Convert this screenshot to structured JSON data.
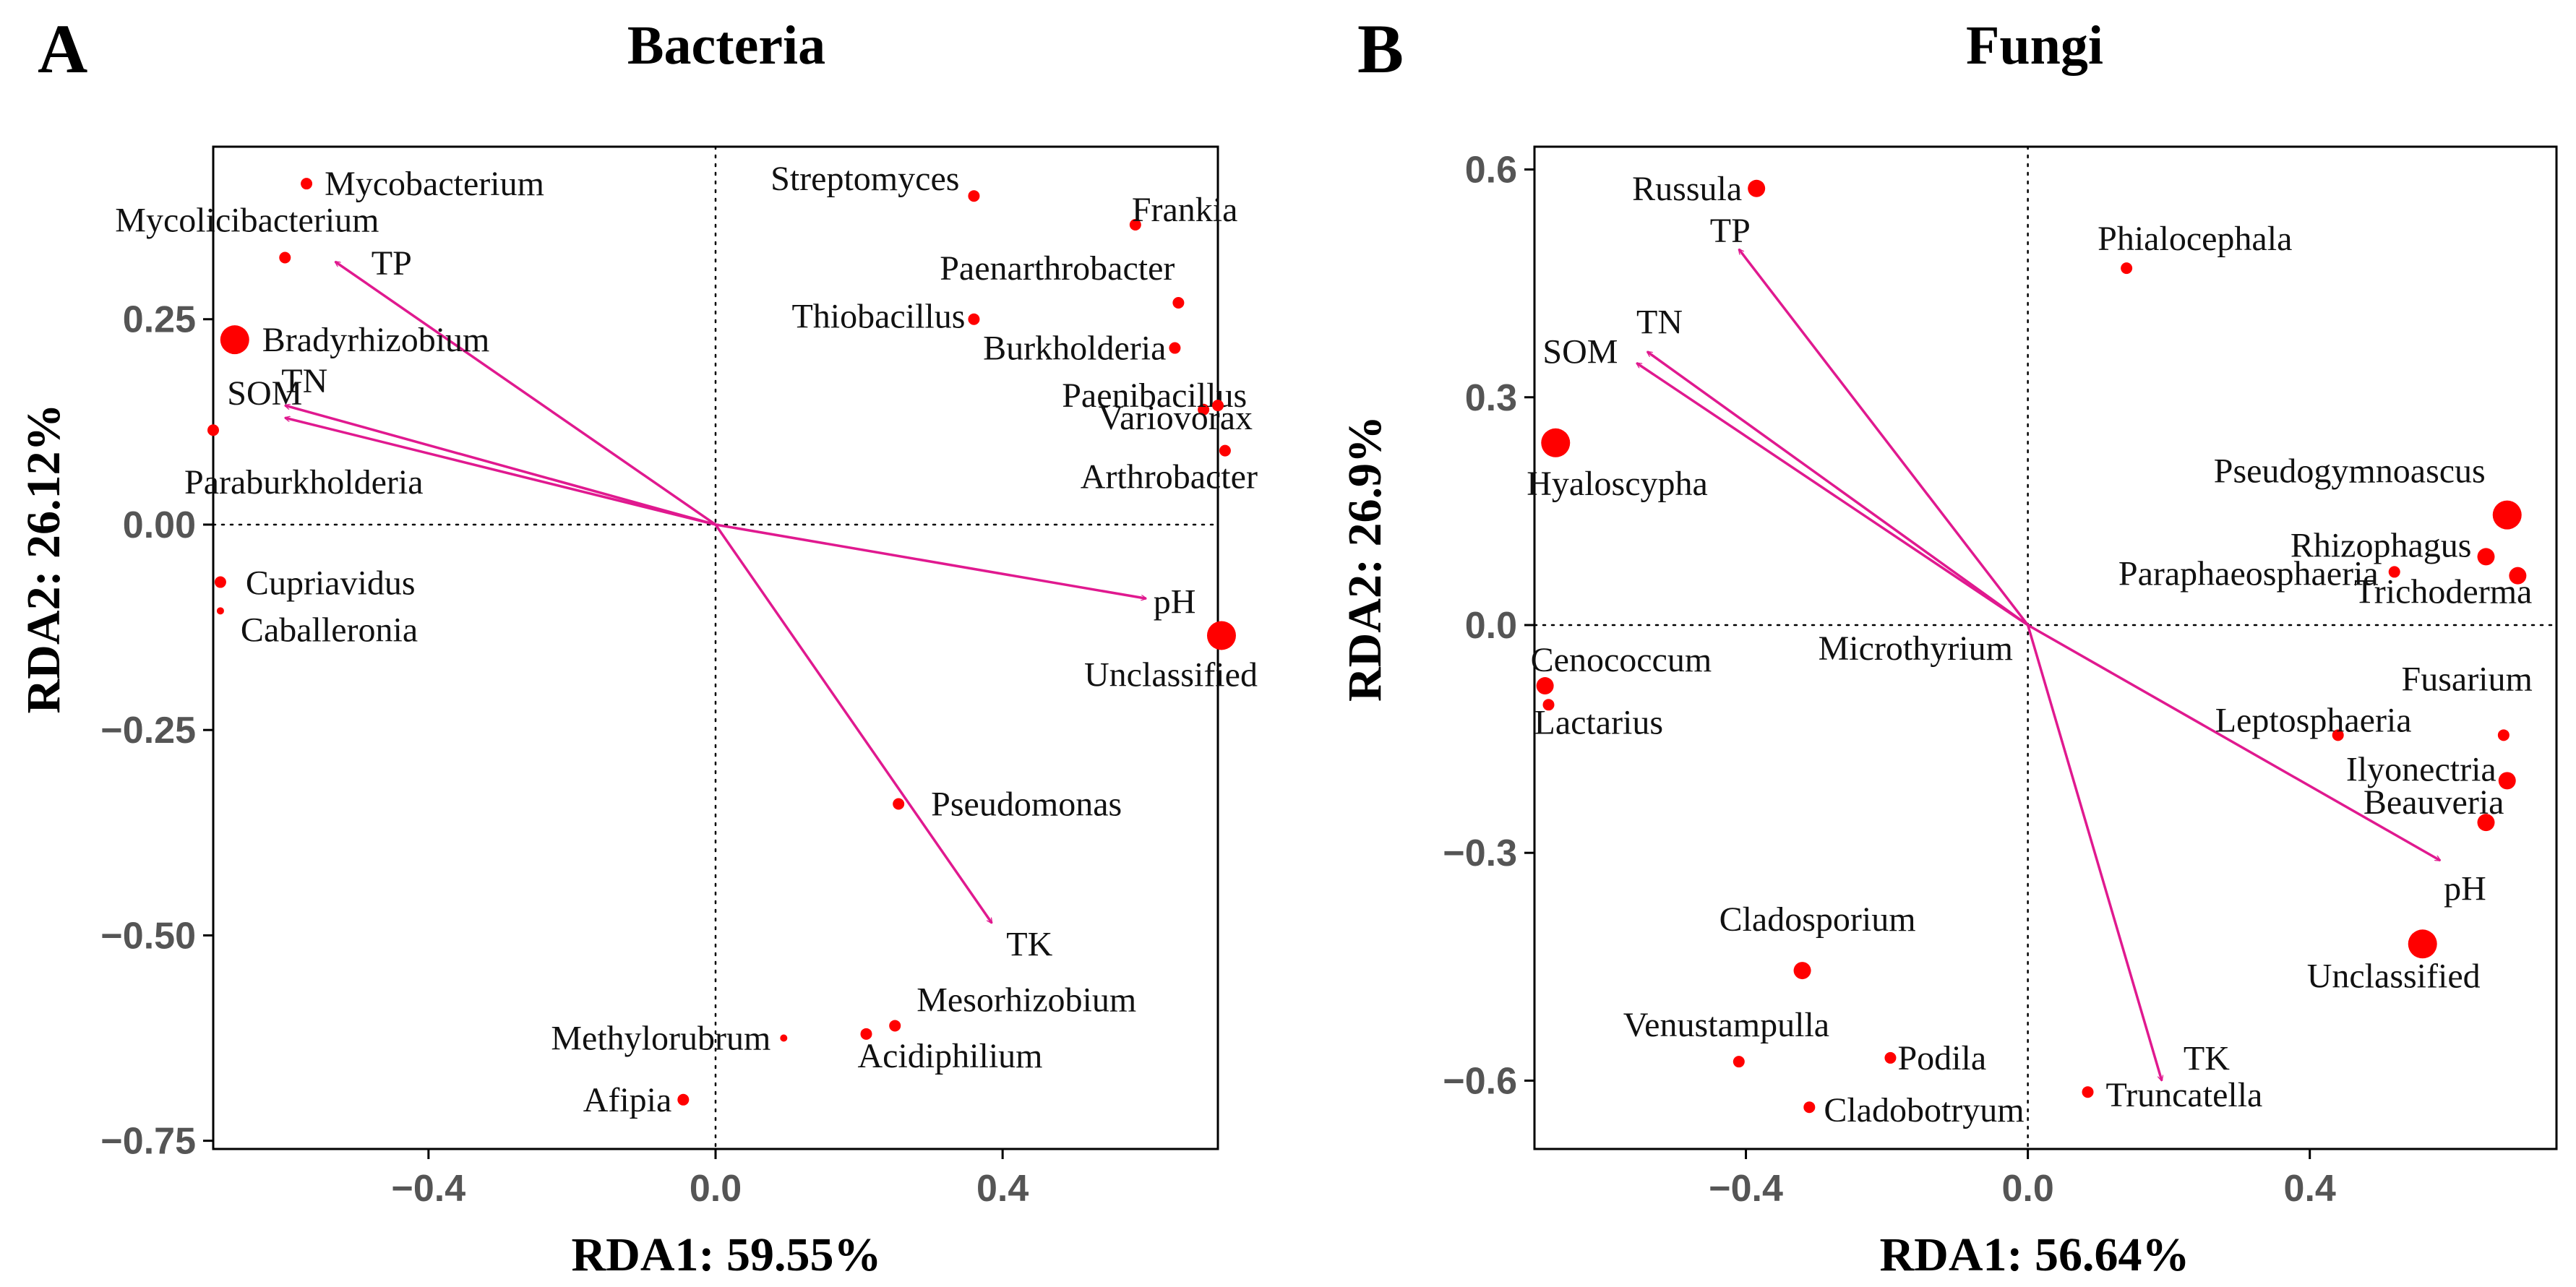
{
  "colors": {
    "point": "#ff0000",
    "arrow": "#e0198f"
  },
  "chart_data": [
    {
      "type": "scatter",
      "subtype": "rda-biplot",
      "panel_letter": "A",
      "title": "Bacteria",
      "xlabel": "RDA1: 59.55%",
      "ylabel": "RDA2: 26.12%",
      "xlim": [
        -0.7,
        0.7
      ],
      "ylim": [
        -0.76,
        0.46
      ],
      "xticks": [
        -0.4,
        0.0,
        0.4
      ],
      "xtick_labels": [
        "−0.4",
        "0.0",
        "0.4"
      ],
      "yticks": [
        0.25,
        0.0,
        -0.25,
        -0.5,
        -0.75
      ],
      "ytick_labels": [
        "0.25",
        "0.00",
        "−0.25",
        "−0.50",
        "−0.75"
      ],
      "points": [
        {
          "label": "Mycobacterium",
          "x": -0.57,
          "y": 0.415,
          "size": "small"
        },
        {
          "label": "Mycolicibacterium",
          "x": -0.6,
          "y": 0.325,
          "size": "small"
        },
        {
          "label": "Bradyrhizobium",
          "x": -0.67,
          "y": 0.225,
          "size": "large"
        },
        {
          "label": "SOM_pt",
          "x": -0.7,
          "y": 0.115,
          "size": "small",
          "label_hidden": true
        },
        {
          "label": "Paraburkholderia",
          "x": -0.7,
          "y": 0.115,
          "size": "none"
        },
        {
          "label": "Cupriavidus",
          "x": -0.69,
          "y": -0.07,
          "size": "small"
        },
        {
          "label": "Caballeronia",
          "x": -0.69,
          "y": -0.105,
          "size": "tiny"
        },
        {
          "label": "Streptomyces",
          "x": 0.36,
          "y": 0.4,
          "size": "small"
        },
        {
          "label": "Frankia",
          "x": 0.585,
          "y": 0.365,
          "size": "small"
        },
        {
          "label": "Paenarthrobacter",
          "x": 0.645,
          "y": 0.27,
          "size": "small"
        },
        {
          "label": "Thiobacillus",
          "x": 0.36,
          "y": 0.25,
          "size": "small"
        },
        {
          "label": "Burkholderia",
          "x": 0.64,
          "y": 0.215,
          "size": "small"
        },
        {
          "label": "Paenibacillus",
          "x": 0.68,
          "y": 0.14,
          "size": "small"
        },
        {
          "label": "Variovorax",
          "x": 0.7,
          "y": 0.145,
          "size": "small"
        },
        {
          "label": "Arthrobacter",
          "x": 0.71,
          "y": 0.09,
          "size": "small"
        },
        {
          "label": "Unclassified",
          "x": 0.705,
          "y": -0.135,
          "size": "large"
        },
        {
          "label": "Pseudomonas",
          "x": 0.255,
          "y": -0.34,
          "size": "small"
        },
        {
          "label": "Methylorubrum",
          "x": 0.095,
          "y": -0.625,
          "size": "tiny"
        },
        {
          "label": "Mesorhizobium",
          "x": 0.25,
          "y": -0.61,
          "size": "small"
        },
        {
          "label": "Acidiphilium",
          "x": 0.21,
          "y": -0.62,
          "size": "small"
        },
        {
          "label": "Afipia",
          "x": -0.045,
          "y": -0.7,
          "size": "small"
        }
      ],
      "arrows": [
        {
          "label": "TP",
          "x": -0.53,
          "y": 0.32
        },
        {
          "label": "TN",
          "x": -0.6,
          "y": 0.145
        },
        {
          "label": "SOM",
          "x": -0.6,
          "y": 0.13
        },
        {
          "label": "pH",
          "x": 0.6,
          "y": -0.09
        },
        {
          "label": "TK",
          "x": 0.385,
          "y": -0.485
        }
      ]
    },
    {
      "type": "scatter",
      "subtype": "rda-biplot",
      "panel_letter": "B",
      "title": "Fungi",
      "xlabel": "RDA1: 56.64%",
      "ylabel": "RDA2: 26.9%",
      "xlim": [
        -0.7,
        0.75
      ],
      "ylim": [
        -0.69,
        0.63
      ],
      "xticks": [
        -0.4,
        0.0,
        0.4
      ],
      "xtick_labels": [
        "−0.4",
        "0.0",
        "0.4"
      ],
      "yticks": [
        0.6,
        0.3,
        0.0,
        -0.3,
        -0.6
      ],
      "ytick_labels": [
        "0.6",
        "0.3",
        "0.0",
        "−0.3",
        "−0.6"
      ],
      "points": [
        {
          "label": "Russula",
          "x": -0.385,
          "y": 0.575,
          "size": "medium"
        },
        {
          "label": "Phialocephala",
          "x": 0.14,
          "y": 0.47,
          "size": "small"
        },
        {
          "label": "Hyaloscypha",
          "x": -0.67,
          "y": 0.24,
          "size": "large"
        },
        {
          "label": "Pseudogymnoascus",
          "x": 0.68,
          "y": 0.145,
          "size": "large"
        },
        {
          "label": "Rhizophagus",
          "x": 0.65,
          "y": 0.09,
          "size": "medium"
        },
        {
          "label": "Paraphaeosphaeria",
          "x": 0.52,
          "y": 0.07,
          "size": "small"
        },
        {
          "label": "Trichoderma",
          "x": 0.695,
          "y": 0.065,
          "size": "medium"
        },
        {
          "label": "Microthyrium",
          "x": 0.0,
          "y": 0.0,
          "size": "none"
        },
        {
          "label": "Cenococcum",
          "x": -0.685,
          "y": -0.08,
          "size": "medium"
        },
        {
          "label": "Lactarius",
          "x": -0.68,
          "y": -0.105,
          "size": "small"
        },
        {
          "label": "Fusarium",
          "x": 0.675,
          "y": -0.145,
          "size": "small"
        },
        {
          "label": "Leptosphaeria",
          "x": 0.44,
          "y": -0.145,
          "size": "small"
        },
        {
          "label": "Ilyonectria",
          "x": 0.68,
          "y": -0.205,
          "size": "medium"
        },
        {
          "label": "Beauveria",
          "x": 0.65,
          "y": -0.26,
          "size": "medium"
        },
        {
          "label": "Unclassified",
          "x": 0.56,
          "y": -0.42,
          "size": "large"
        },
        {
          "label": "Cladosporium",
          "x": -0.32,
          "y": -0.455,
          "size": "medium"
        },
        {
          "label": "Venustampulla",
          "x": -0.41,
          "y": -0.575,
          "size": "small"
        },
        {
          "label": "Podila",
          "x": -0.195,
          "y": -0.57,
          "size": "small"
        },
        {
          "label": "Cladobotryum",
          "x": -0.31,
          "y": -0.635,
          "size": "small"
        },
        {
          "label": "Truncatella",
          "x": 0.085,
          "y": -0.615,
          "size": "small"
        }
      ],
      "arrows": [
        {
          "label": "TP",
          "x": -0.41,
          "y": 0.495
        },
        {
          "label": "TN",
          "x": -0.54,
          "y": 0.36
        },
        {
          "label": "SOM",
          "x": -0.555,
          "y": 0.345
        },
        {
          "label": "pH",
          "x": 0.585,
          "y": -0.31
        },
        {
          "label": "TK",
          "x": 0.19,
          "y": -0.6
        }
      ]
    }
  ]
}
